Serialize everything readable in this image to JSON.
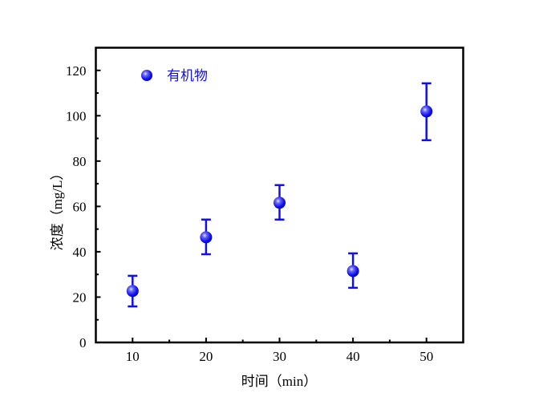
{
  "chart_data": {
    "type": "scatter",
    "title": "",
    "xlabel": "时间（min）",
    "ylabel": "浓度（mg/L）",
    "xlim": [
      5,
      55
    ],
    "ylim": [
      0,
      130
    ],
    "x_ticks": [
      10,
      20,
      30,
      40,
      50
    ],
    "y_ticks": [
      0,
      20,
      40,
      60,
      80,
      100,
      120
    ],
    "grid": false,
    "legend_position": "top-left",
    "series": [
      {
        "name": "有机物",
        "color": "#1010ee",
        "marker": "sphere",
        "x": [
          10,
          20,
          30,
          40,
          50
        ],
        "y": [
          22.7,
          46.4,
          61.6,
          31.5,
          101.9
        ],
        "error_upper": [
          29.4,
          54.2,
          69.4,
          39.3,
          114.3
        ],
        "error_lower": [
          15.9,
          38.9,
          54.2,
          24.1,
          89.2
        ]
      }
    ]
  }
}
